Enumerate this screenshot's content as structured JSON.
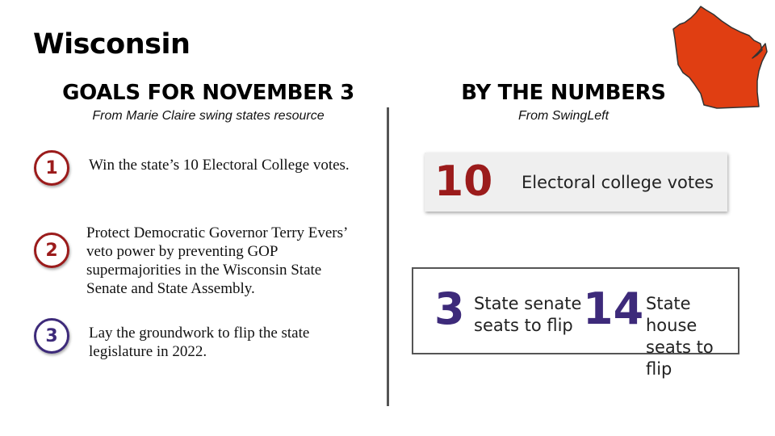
{
  "title": "Wisconsin",
  "colors": {
    "maroon": "#9b1b1b",
    "purple": "#3d2a7a",
    "state_fill": "#e03e12",
    "divider": "#555555"
  },
  "left": {
    "heading": "GOALS FOR NOVEMBER 3",
    "source": "From Marie Claire swing states resource",
    "goals": [
      {
        "number": "1",
        "text": "Win the state’s 10 Electoral College votes."
      },
      {
        "number": "2",
        "text": "Protect Democratic Governor Terry Evers’ veto power by preventing GOP supermajorities in the Wisconsin State Senate and State Assembly."
      },
      {
        "number": "3",
        "text": "Lay the groundwork to flip the state legislature in 2022."
      }
    ]
  },
  "right": {
    "heading": "BY THE NUMBERS",
    "source": "From SwingLeft",
    "electoral": {
      "value": "10",
      "label": "Electoral college votes"
    },
    "senate": {
      "value": "3",
      "label_line1": "State senate",
      "label_line2": "seats to flip"
    },
    "house": {
      "value": "14",
      "label_line1": "State house",
      "label_line2": "seats to flip"
    }
  },
  "map_icon": "wisconsin-state-map"
}
